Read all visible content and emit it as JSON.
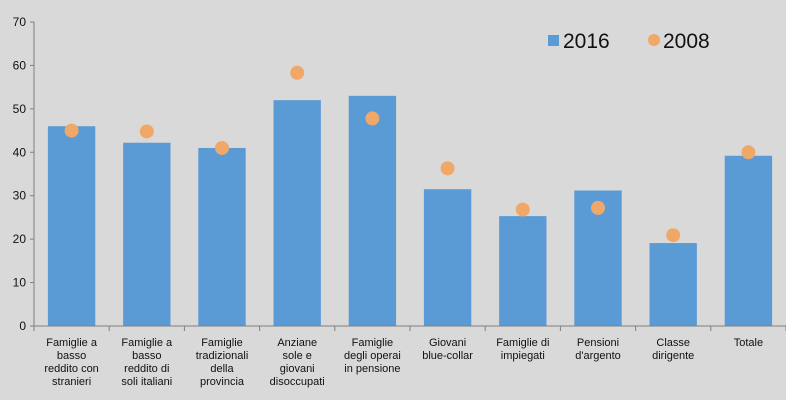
{
  "chart_data": {
    "type": "bar",
    "title": "",
    "xlabel": "",
    "ylabel": "",
    "ylim": [
      0,
      70
    ],
    "yticks": [
      0,
      10,
      20,
      30,
      40,
      50,
      60,
      70
    ],
    "grid": false,
    "legend_position": "top-right",
    "categories": [
      [
        "Famiglie a",
        "basso",
        "reddito con",
        "stranieri"
      ],
      [
        "Famiglie a",
        "basso",
        "reddito di",
        "soli italiani"
      ],
      [
        "Famiglie",
        "tradizionali",
        "della",
        "provincia"
      ],
      [
        "Anziane",
        "sole e",
        "giovani",
        "disoccupati"
      ],
      [
        "Famiglie",
        "degli operai",
        "in pensione"
      ],
      [
        "Giovani",
        "blue-collar"
      ],
      [
        "Famiglie di",
        "impiegati"
      ],
      [
        "Pensioni",
        "d'argento"
      ],
      [
        "Classe",
        "dirigente"
      ],
      [
        "Totale"
      ]
    ],
    "series": [
      {
        "name": "2016",
        "type": "bar",
        "color": "#5b9bd5",
        "values": [
          46,
          42.2,
          41,
          52,
          53,
          31.5,
          25.3,
          31.2,
          19.1,
          39.2
        ]
      },
      {
        "name": "2008",
        "type": "marker",
        "color": "#f0a868",
        "values": [
          45,
          44.8,
          41,
          58.3,
          47.8,
          36.3,
          26.8,
          27.2,
          20.9,
          40
        ]
      }
    ]
  }
}
